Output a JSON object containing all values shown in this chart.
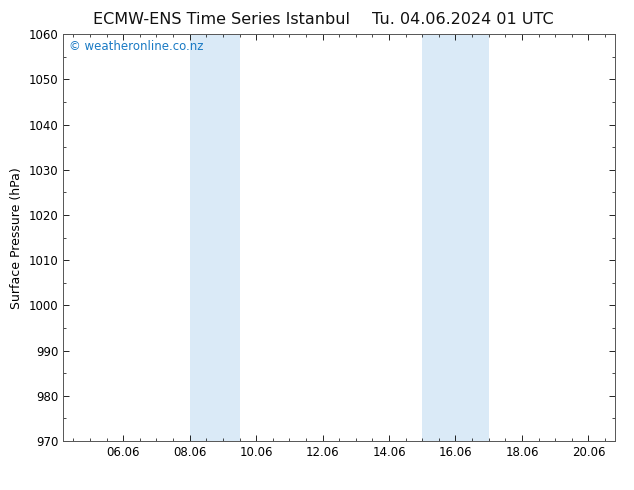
{
  "title_left": "ECMW-ENS Time Series Istanbul",
  "title_right": "Tu. 04.06.2024 01 UTC",
  "ylabel": "Surface Pressure (hPa)",
  "ylim": [
    970,
    1060
  ],
  "yticks": [
    970,
    980,
    990,
    1000,
    1010,
    1020,
    1030,
    1040,
    1050,
    1060
  ],
  "xlim_start": 4.2,
  "xlim_end": 20.8,
  "xtick_labels": [
    "06.06",
    "08.06",
    "10.06",
    "12.06",
    "14.06",
    "16.06",
    "18.06",
    "20.06"
  ],
  "xtick_positions": [
    6.0,
    8.0,
    10.0,
    12.0,
    14.0,
    16.0,
    18.0,
    20.0
  ],
  "shaded_bands": [
    {
      "x_start": 8.0,
      "x_end": 9.5
    },
    {
      "x_start": 15.0,
      "x_end": 17.0
    }
  ],
  "band_color": "#daeaf7",
  "background_color": "#ffffff",
  "plot_bg_color": "#ffffff",
  "border_color": "#555555",
  "watermark_text": "© weatheronline.co.nz",
  "watermark_color": "#1a7ac4",
  "watermark_fontsize": 8.5,
  "title_fontsize": 11.5,
  "label_fontsize": 9,
  "tick_fontsize": 8.5
}
